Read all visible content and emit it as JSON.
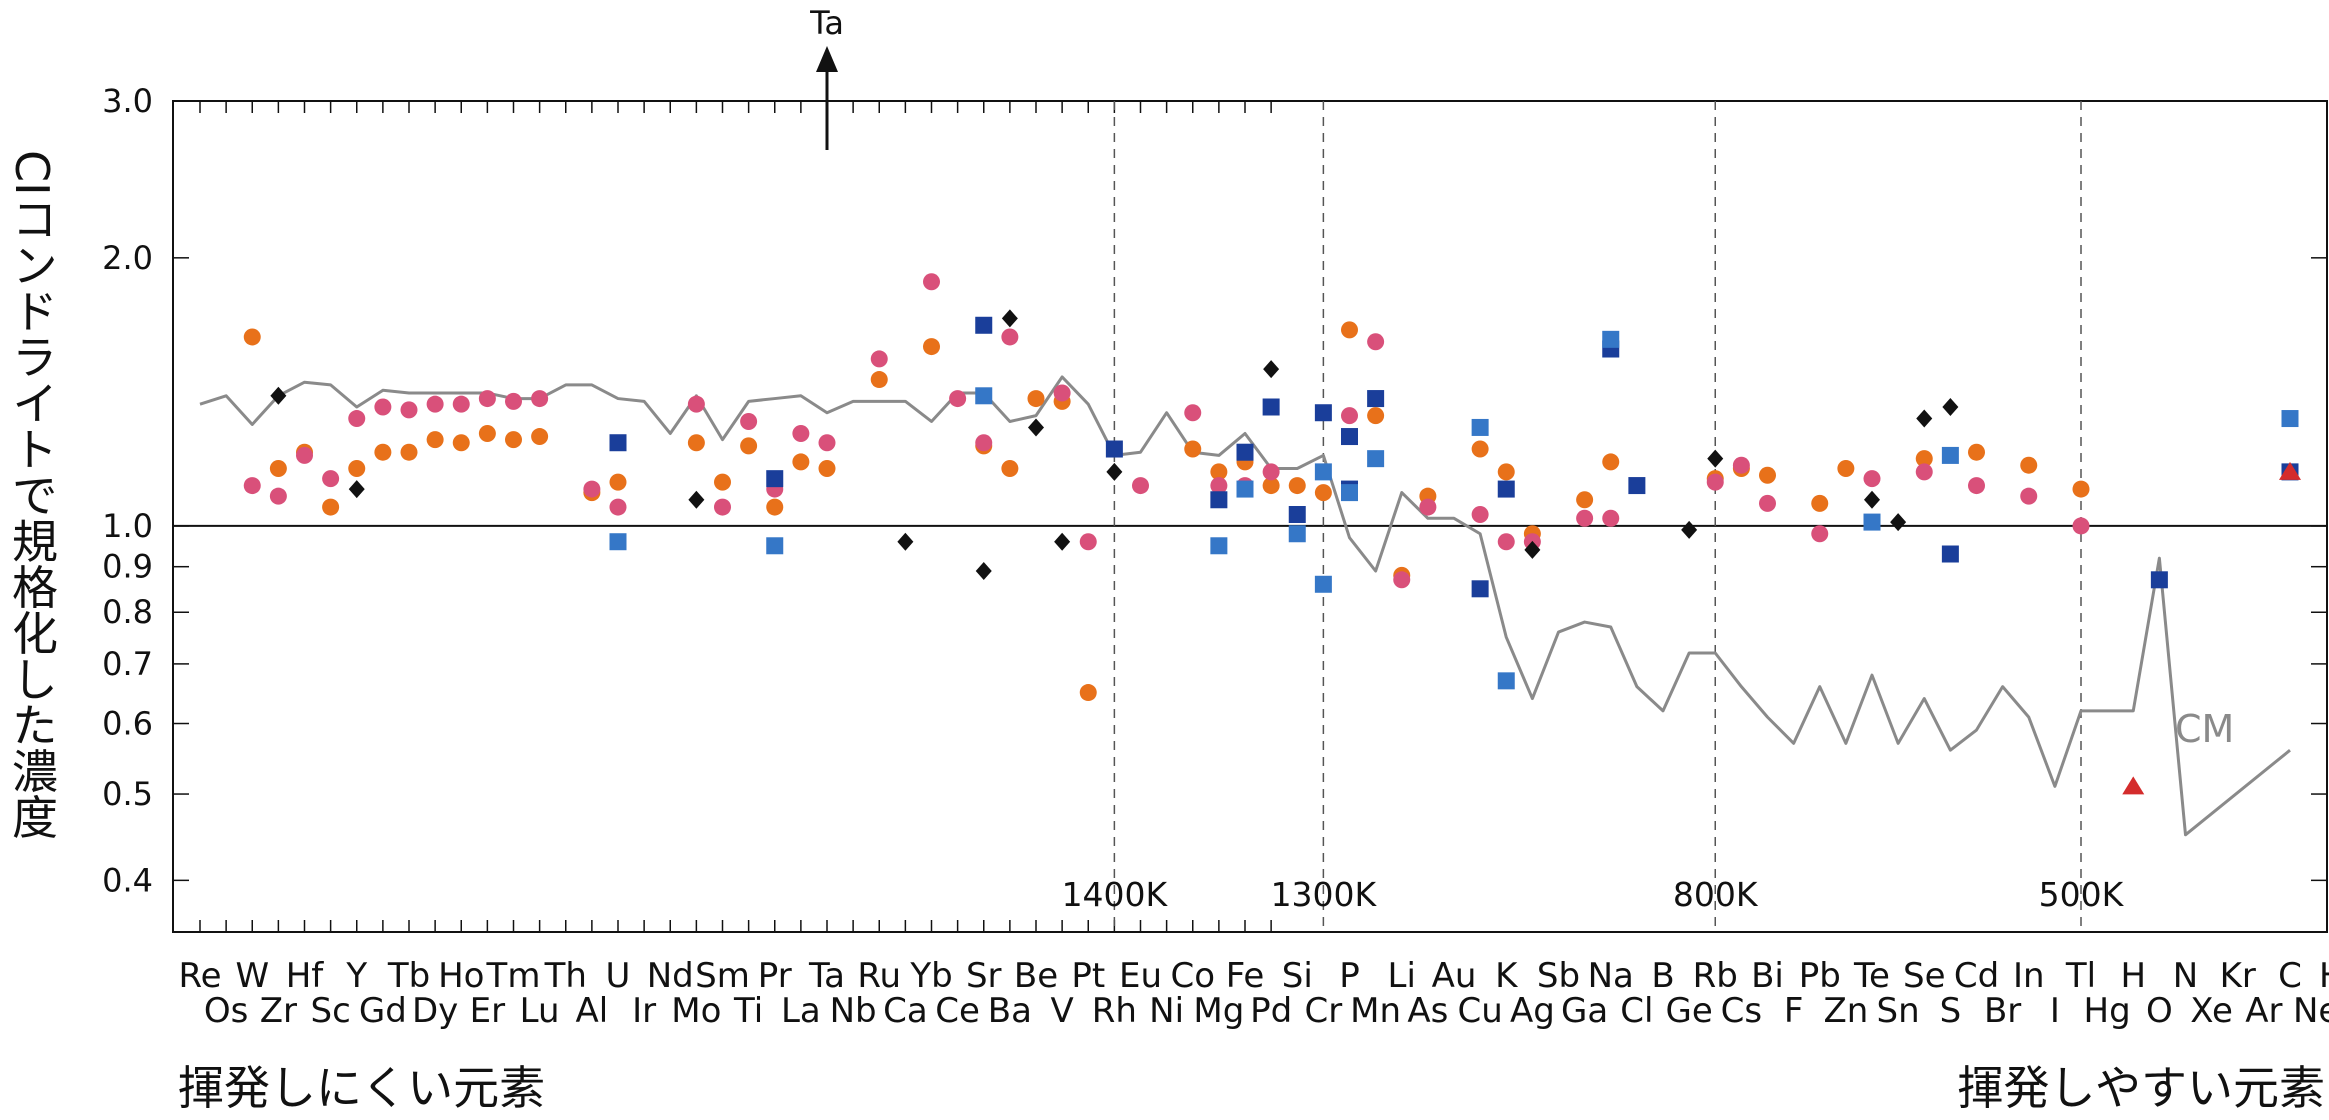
{
  "chart_data": {
    "type": "scatter",
    "ylabel": "CIコンドライトで規格化した濃度",
    "yscale": "log",
    "ylim": [
      0.35,
      3.0
    ],
    "yticks": [
      "3.0",
      "2.0",
      "1.0",
      "0.9",
      "0.8",
      "0.7",
      "0.6",
      "0.5",
      "0.4"
    ],
    "reference_line": 1.0,
    "grid": false,
    "legend": "none",
    "top_elements": [
      "Re",
      "W",
      "Hf",
      "Y",
      "Tb",
      "Ho",
      "Tm",
      "Th",
      "U",
      "Nd",
      "Sm",
      "Pr",
      "Ta",
      "Ru",
      "Yb",
      "Sr",
      "Be",
      "Pt",
      "Eu",
      "Co",
      "Fe",
      "Si",
      "P",
      "Li",
      "Au",
      "K",
      "Sb",
      "Na",
      "B",
      "Rb",
      "Bi",
      "Pb",
      "Te",
      "Se",
      "Cd",
      "In",
      "Tl",
      "H",
      "N",
      "Kr",
      "C",
      "He"
    ],
    "bottom_elements": [
      "Os",
      "Zr",
      "Sc",
      "Gd",
      "Dy",
      "Er",
      "Lu",
      "Al",
      "Ir",
      "Mo",
      "Ti",
      "La",
      "Nb",
      "Ca",
      "Ce",
      "Ba",
      "V",
      "Rh",
      "Ni",
      "Mg",
      "Pd",
      "Cr",
      "Mn",
      "As",
      "Cu",
      "Ag",
      "Ga",
      "Cl",
      "Ge",
      "Cs",
      "F",
      "Zn",
      "Sn",
      "S",
      "Br",
      "I",
      "Hg",
      "O",
      "Xe",
      "Ar",
      "Ne"
    ],
    "temperature_markers": [
      {
        "label": "1400K",
        "x": 17.5
      },
      {
        "label": "1300K",
        "x": 21.5
      },
      {
        "label": "800K",
        "x": 29.0
      },
      {
        "label": "500K",
        "x": 36.0
      }
    ],
    "cm_label": "CM",
    "arrow_label": "Ta",
    "cm_line": [
      [
        0,
        1.37
      ],
      [
        0.5,
        1.4
      ],
      [
        1,
        1.3
      ],
      [
        1.5,
        1.4
      ],
      [
        2,
        1.45
      ],
      [
        2.5,
        1.44
      ],
      [
        3,
        1.36
      ],
      [
        3.5,
        1.42
      ],
      [
        4,
        1.41
      ],
      [
        4.5,
        1.41
      ],
      [
        5,
        1.41
      ],
      [
        5.5,
        1.41
      ],
      [
        6,
        1.39
      ],
      [
        6.5,
        1.39
      ],
      [
        7,
        1.44
      ],
      [
        7.5,
        1.44
      ],
      [
        8,
        1.39
      ],
      [
        8.5,
        1.38
      ],
      [
        9,
        1.27
      ],
      [
        9.5,
        1.4
      ],
      [
        10,
        1.25
      ],
      [
        10.5,
        1.38
      ],
      [
        11,
        1.39
      ],
      [
        11.5,
        1.4
      ],
      [
        12,
        1.34
      ],
      [
        12.5,
        1.38
      ],
      [
        13,
        1.38
      ],
      [
        13.5,
        1.38
      ],
      [
        14,
        1.31
      ],
      [
        14.5,
        1.41
      ],
      [
        15,
        1.41
      ],
      [
        15.5,
        1.31
      ],
      [
        16,
        1.33
      ],
      [
        16.5,
        1.47
      ],
      [
        17,
        1.37
      ],
      [
        17.5,
        1.2
      ],
      [
        18,
        1.21
      ],
      [
        18.5,
        1.34
      ],
      [
        19,
        1.21
      ],
      [
        19.5,
        1.2
      ],
      [
        20,
        1.27
      ],
      [
        20.5,
        1.16
      ],
      [
        21,
        1.16
      ],
      [
        21.5,
        1.2
      ],
      [
        22,
        0.97
      ],
      [
        22.5,
        0.89
      ],
      [
        23,
        1.09
      ],
      [
        23.5,
        1.02
      ],
      [
        24,
        1.02
      ],
      [
        24.5,
        0.98
      ],
      [
        25,
        0.75
      ],
      [
        25.5,
        0.64
      ],
      [
        26,
        0.76
      ],
      [
        26.5,
        0.78
      ],
      [
        27,
        0.77
      ],
      [
        27.5,
        0.66
      ],
      [
        28,
        0.62
      ],
      [
        28.5,
        0.72
      ],
      [
        29,
        0.72
      ],
      [
        29.5,
        0.66
      ],
      [
        30,
        0.61
      ],
      [
        30.5,
        0.57
      ],
      [
        31,
        0.66
      ],
      [
        31.5,
        0.57
      ],
      [
        32,
        0.68
      ],
      [
        32.5,
        0.57
      ],
      [
        33,
        0.64
      ],
      [
        33.5,
        0.56
      ],
      [
        34,
        0.59
      ],
      [
        34.5,
        0.66
      ],
      [
        35,
        0.61
      ],
      [
        35.5,
        0.51
      ],
      [
        36,
        0.62
      ],
      [
        37,
        0.62
      ],
      [
        37.5,
        0.92
      ],
      [
        38,
        0.45
      ],
      [
        40,
        0.56
      ]
    ],
    "series": [
      {
        "color": "#e8711a",
        "marker": "circle",
        "points": [
          [
            1,
            1.63
          ],
          [
            1.5,
            1.16
          ],
          [
            2,
            1.21
          ],
          [
            2.5,
            1.05
          ],
          [
            3,
            1.16
          ],
          [
            3.5,
            1.21
          ],
          [
            4,
            1.21
          ],
          [
            4.5,
            1.25
          ],
          [
            5,
            1.24
          ],
          [
            5.5,
            1.27
          ],
          [
            6,
            1.25
          ],
          [
            6.5,
            1.26
          ],
          [
            7.5,
            1.09
          ],
          [
            8,
            1.12
          ],
          [
            9.5,
            1.24
          ],
          [
            10,
            1.12
          ],
          [
            10.5,
            1.23
          ],
          [
            11,
            1.05
          ],
          [
            11.5,
            1.18
          ],
          [
            12,
            1.16
          ],
          [
            13,
            1.46
          ],
          [
            14,
            1.59
          ],
          [
            15,
            1.23
          ],
          [
            15.5,
            1.16
          ],
          [
            16,
            1.39
          ],
          [
            16.5,
            1.38
          ],
          [
            17,
            0.65
          ],
          [
            19,
            1.22
          ],
          [
            19.5,
            1.15
          ],
          [
            20,
            1.18
          ],
          [
            20.5,
            1.11
          ],
          [
            21,
            1.11
          ],
          [
            21.5,
            1.09
          ],
          [
            22,
            1.66
          ],
          [
            22.5,
            1.33
          ],
          [
            23,
            0.88
          ],
          [
            23.5,
            1.08
          ],
          [
            24.5,
            1.22
          ],
          [
            25,
            1.15
          ],
          [
            25.5,
            0.98
          ],
          [
            26.5,
            1.07
          ],
          [
            27,
            1.18
          ],
          [
            29,
            1.13
          ],
          [
            29.5,
            1.16
          ],
          [
            30,
            1.14
          ],
          [
            31,
            1.06
          ],
          [
            31.5,
            1.16
          ],
          [
            33,
            1.19
          ],
          [
            34,
            1.21
          ],
          [
            35,
            1.17
          ],
          [
            36,
            1.1
          ]
        ]
      },
      {
        "color": "#d9507a",
        "marker": "circle",
        "points": [
          [
            1,
            1.11
          ],
          [
            1.5,
            1.08
          ],
          [
            2,
            1.2
          ],
          [
            2.5,
            1.13
          ],
          [
            3,
            1.32
          ],
          [
            3.5,
            1.36
          ],
          [
            4,
            1.35
          ],
          [
            4.5,
            1.37
          ],
          [
            5,
            1.37
          ],
          [
            5.5,
            1.39
          ],
          [
            6,
            1.38
          ],
          [
            6.5,
            1.39
          ],
          [
            7.5,
            1.1
          ],
          [
            8,
            1.05
          ],
          [
            9.5,
            1.37
          ],
          [
            10,
            1.05
          ],
          [
            10.5,
            1.31
          ],
          [
            11,
            1.1
          ],
          [
            11.5,
            1.27
          ],
          [
            12,
            1.24
          ],
          [
            13,
            1.54
          ],
          [
            14,
            1.88
          ],
          [
            14.5,
            1.39
          ],
          [
            15,
            1.24
          ],
          [
            15.5,
            1.63
          ],
          [
            16.5,
            1.41
          ],
          [
            17,
            0.96
          ],
          [
            18,
            1.11
          ],
          [
            19,
            1.34
          ],
          [
            19.5,
            1.11
          ],
          [
            20,
            1.11
          ],
          [
            20.5,
            1.15
          ],
          [
            22,
            1.33
          ],
          [
            22.5,
            1.61
          ],
          [
            23,
            0.87
          ],
          [
            23.5,
            1.05
          ],
          [
            24.5,
            1.03
          ],
          [
            25,
            0.96
          ],
          [
            25.5,
            0.96
          ],
          [
            26.5,
            1.02
          ],
          [
            27,
            1.02
          ],
          [
            29,
            1.12
          ],
          [
            29.5,
            1.17
          ],
          [
            30,
            1.06
          ],
          [
            31,
            0.98
          ],
          [
            32,
            1.13
          ],
          [
            33,
            1.15
          ],
          [
            34,
            1.11
          ],
          [
            35,
            1.08
          ],
          [
            36,
            1.0
          ]
        ]
      },
      {
        "color": "#1a3e9a",
        "marker": "square",
        "points": [
          [
            8,
            1.24
          ],
          [
            11,
            1.13
          ],
          [
            15,
            1.68
          ],
          [
            17.5,
            1.22
          ],
          [
            19.5,
            1.07
          ],
          [
            20,
            1.21
          ],
          [
            20.5,
            1.36
          ],
          [
            21,
            1.03
          ],
          [
            21.5,
            1.34
          ],
          [
            22,
            1.26
          ],
          [
            22,
            1.1
          ],
          [
            22.5,
            1.39
          ],
          [
            24.5,
            0.85
          ],
          [
            25,
            1.1
          ],
          [
            27,
            1.58
          ],
          [
            27.5,
            1.11
          ],
          [
            33.5,
            0.93
          ],
          [
            37.5,
            0.87
          ],
          [
            40,
            1.15
          ]
        ]
      },
      {
        "color": "#3577c7",
        "marker": "square",
        "points": [
          [
            8,
            0.96
          ],
          [
            11,
            0.95
          ],
          [
            15,
            1.4
          ],
          [
            19.5,
            0.95
          ],
          [
            20,
            1.1
          ],
          [
            21,
            0.98
          ],
          [
            21.5,
            0.86
          ],
          [
            21.5,
            1.15
          ],
          [
            22,
            1.09
          ],
          [
            22.5,
            1.19
          ],
          [
            24.5,
            1.29
          ],
          [
            25,
            0.67
          ],
          [
            27,
            1.62
          ],
          [
            32,
            1.01
          ],
          [
            33.5,
            1.2
          ],
          [
            40,
            1.32
          ]
        ]
      },
      {
        "color": "#111111",
        "marker": "diamond",
        "points": [
          [
            1.5,
            1.4
          ],
          [
            3,
            1.1
          ],
          [
            9.5,
            1.07
          ],
          [
            13.5,
            0.96
          ],
          [
            15,
            0.89
          ],
          [
            15.5,
            1.71
          ],
          [
            16,
            1.29
          ],
          [
            16.5,
            0.96
          ],
          [
            17.5,
            1.15
          ],
          [
            20.5,
            1.5
          ],
          [
            25.5,
            0.94
          ],
          [
            28.5,
            0.99
          ],
          [
            29,
            1.19
          ],
          [
            32,
            1.07
          ],
          [
            32.5,
            1.01
          ],
          [
            33,
            1.32
          ],
          [
            33.5,
            1.36
          ]
        ]
      },
      {
        "color": "#d42c2c",
        "marker": "triangle",
        "points": [
          [
            37,
            0.51
          ],
          [
            40,
            1.15
          ]
        ]
      }
    ]
  },
  "footer": {
    "left": "揮発しにくい元素",
    "right": "揮発しやすい元素"
  }
}
